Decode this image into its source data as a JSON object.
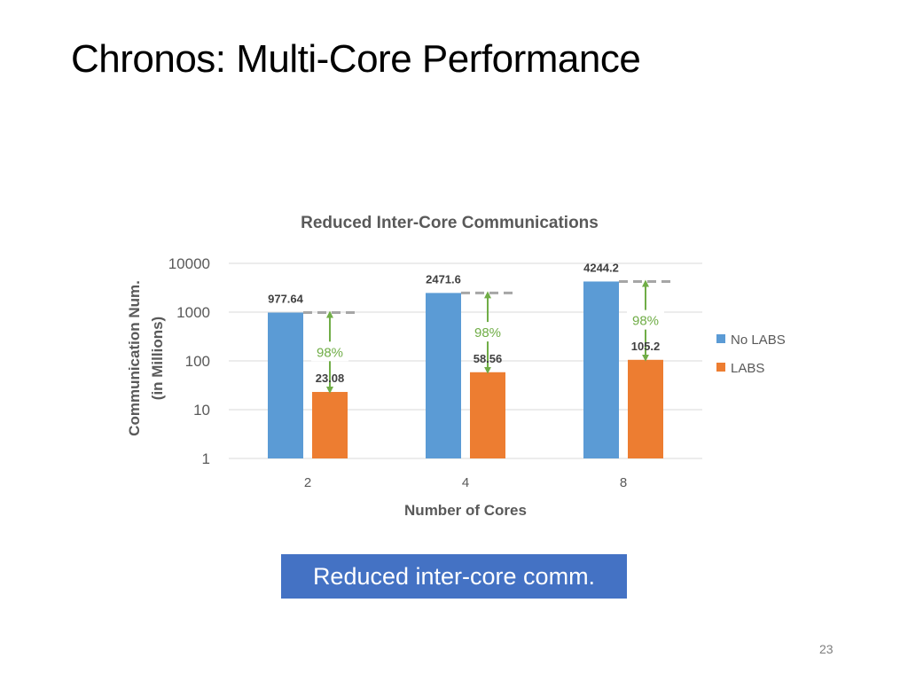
{
  "slide": {
    "title": "Chronos: Multi-Core Performance",
    "callout": "Reduced inter-core comm.",
    "page_number": "23"
  },
  "colors": {
    "no_labs": "#5b9bd5",
    "labs": "#ed7d31",
    "annotation": "#70ad47",
    "gridline": "#d9d9d9",
    "reference_dash": "#a6a6a6",
    "callout_bg": "#4472c4"
  },
  "chart_data": {
    "type": "bar",
    "title": "Reduced Inter-Core Communications",
    "xlabel": "Number of Cores",
    "ylabel_lines": [
      "Communication Num.",
      "(in Millions)"
    ],
    "scale": "log",
    "ylim": [
      1,
      10000
    ],
    "yticks": [
      "1",
      "10",
      "100",
      "1000",
      "10000"
    ],
    "categories": [
      "2",
      "4",
      "8"
    ],
    "series": [
      {
        "name": "No LABS",
        "values": [
          977.64,
          2471.6,
          4244.2
        ],
        "labels": [
          "977.64",
          "2471.6",
          "4244.2"
        ]
      },
      {
        "name": "LABS",
        "values": [
          23.08,
          58.56,
          105.2
        ],
        "labels": [
          "23.08",
          "58.56",
          "105.2"
        ]
      }
    ],
    "annotations": [
      "98%",
      "98%",
      "98%"
    ],
    "legend_position": "right",
    "grid": true
  }
}
